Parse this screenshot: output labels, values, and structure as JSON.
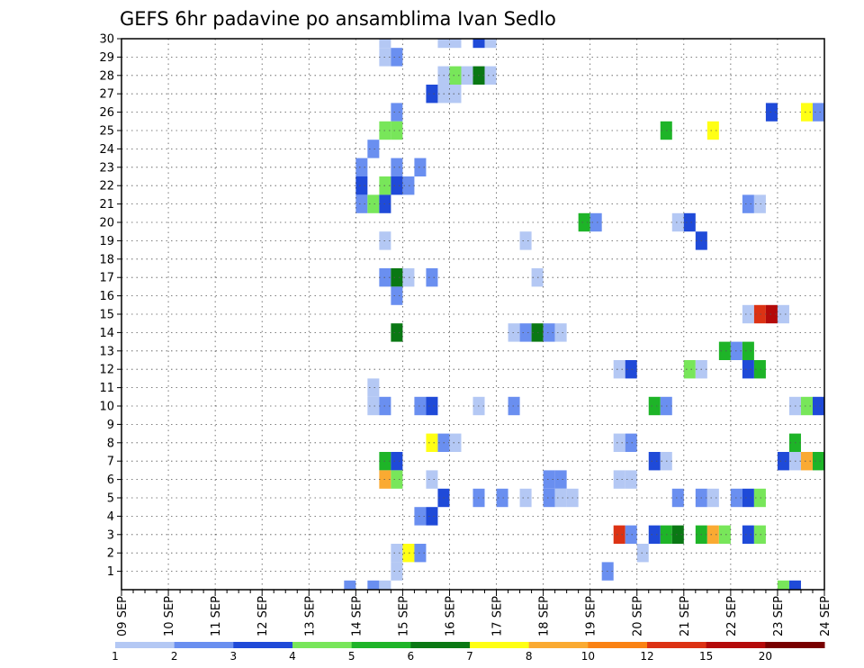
{
  "chart_data": {
    "type": "heatmap",
    "title": "GEFS 6hr padavine po ansamblima Ivan Sedlo",
    "xlabel": "",
    "ylabel": "",
    "xlim": [
      0,
      60
    ],
    "ylim": [
      0,
      30
    ],
    "y_ticks": [
      1,
      2,
      3,
      4,
      5,
      6,
      7,
      8,
      9,
      10,
      11,
      12,
      13,
      14,
      15,
      16,
      17,
      18,
      19,
      20,
      21,
      22,
      23,
      24,
      25,
      26,
      27,
      28,
      29,
      30
    ],
    "x_tick_labels": [
      "09 SEP",
      "10 SEP",
      "11 SEP",
      "12 SEP",
      "13 SEP",
      "14 SEP",
      "15 SEP",
      "16 SEP",
      "17 SEP",
      "18 SEP",
      "19 SEP",
      "20 SEP",
      "21 SEP",
      "22 SEP",
      "23 SEP",
      "24 SEP"
    ],
    "grid": true,
    "legend": {
      "placement": "bottom",
      "boundary_labels": [
        "1",
        "2",
        "3",
        "4",
        "5",
        "6",
        "7",
        "8",
        "10",
        "12",
        "15",
        "20"
      ],
      "colors": [
        "#b4c8f4",
        "#6a8ff0",
        "#1f4ad8",
        "#78e65a",
        "#1eb428",
        "#0a7814",
        "#ffff14",
        "#faaa32",
        "#fa8214",
        "#dc3214",
        "#b40a0a",
        "#780000"
      ]
    },
    "cells": [
      {
        "m": 30,
        "t": 22,
        "v": 1
      },
      {
        "m": 30,
        "t": 27,
        "v": 1
      },
      {
        "m": 30,
        "t": 28,
        "v": 1
      },
      {
        "m": 30,
        "t": 30,
        "v": 3
      },
      {
        "m": 30,
        "t": 31,
        "v": 1
      },
      {
        "m": 29,
        "t": 22,
        "v": 1
      },
      {
        "m": 29,
        "t": 23,
        "v": 2
      },
      {
        "m": 28,
        "t": 27,
        "v": 1
      },
      {
        "m": 28,
        "t": 28,
        "v": 4
      },
      {
        "m": 28,
        "t": 29,
        "v": 1
      },
      {
        "m": 28,
        "t": 30,
        "v": 6
      },
      {
        "m": 28,
        "t": 31,
        "v": 1
      },
      {
        "m": 27,
        "t": 26,
        "v": 3
      },
      {
        "m": 27,
        "t": 27,
        "v": 1
      },
      {
        "m": 27,
        "t": 28,
        "v": 1
      },
      {
        "m": 26,
        "t": 23,
        "v": 2
      },
      {
        "m": 26,
        "t": 55,
        "v": 3
      },
      {
        "m": 26,
        "t": 58,
        "v": 7
      },
      {
        "m": 26,
        "t": 59,
        "v": 2
      },
      {
        "m": 25,
        "t": 22,
        "v": 4
      },
      {
        "m": 25,
        "t": 23,
        "v": 4
      },
      {
        "m": 25,
        "t": 46,
        "v": 5
      },
      {
        "m": 25,
        "t": 50,
        "v": 7
      },
      {
        "m": 24,
        "t": 21,
        "v": 2
      },
      {
        "m": 23,
        "t": 20,
        "v": 2
      },
      {
        "m": 23,
        "t": 23,
        "v": 2
      },
      {
        "m": 23,
        "t": 25,
        "v": 2
      },
      {
        "m": 22,
        "t": 20,
        "v": 3
      },
      {
        "m": 22,
        "t": 22,
        "v": 4
      },
      {
        "m": 22,
        "t": 23,
        "v": 3
      },
      {
        "m": 22,
        "t": 24,
        "v": 2
      },
      {
        "m": 21,
        "t": 20,
        "v": 2
      },
      {
        "m": 21,
        "t": 21,
        "v": 4
      },
      {
        "m": 21,
        "t": 22,
        "v": 3
      },
      {
        "m": 21,
        "t": 53,
        "v": 2
      },
      {
        "m": 21,
        "t": 54,
        "v": 1
      },
      {
        "m": 20,
        "t": 39,
        "v": 5
      },
      {
        "m": 20,
        "t": 40,
        "v": 2
      },
      {
        "m": 20,
        "t": 47,
        "v": 1
      },
      {
        "m": 20,
        "t": 48,
        "v": 3
      },
      {
        "m": 19,
        "t": 22,
        "v": 1
      },
      {
        "m": 19,
        "t": 34,
        "v": 1
      },
      {
        "m": 19,
        "t": 49,
        "v": 3
      },
      {
        "m": 17,
        "t": 22,
        "v": 2
      },
      {
        "m": 17,
        "t": 23,
        "v": 6
      },
      {
        "m": 17,
        "t": 24,
        "v": 1
      },
      {
        "m": 17,
        "t": 26,
        "v": 2
      },
      {
        "m": 17,
        "t": 35,
        "v": 1
      },
      {
        "m": 16,
        "t": 23,
        "v": 2
      },
      {
        "m": 15,
        "t": 53,
        "v": 1
      },
      {
        "m": 15,
        "t": 54,
        "v": 10
      },
      {
        "m": 15,
        "t": 55,
        "v": 11
      },
      {
        "m": 15,
        "t": 56,
        "v": 1
      },
      {
        "m": 14,
        "t": 23,
        "v": 6
      },
      {
        "m": 14,
        "t": 33,
        "v": 1
      },
      {
        "m": 14,
        "t": 34,
        "v": 2
      },
      {
        "m": 14,
        "t": 35,
        "v": 6
      },
      {
        "m": 14,
        "t": 36,
        "v": 2
      },
      {
        "m": 14,
        "t": 37,
        "v": 1
      },
      {
        "m": 13,
        "t": 51,
        "v": 5
      },
      {
        "m": 13,
        "t": 52,
        "v": 2
      },
      {
        "m": 13,
        "t": 53,
        "v": 5
      },
      {
        "m": 12,
        "t": 42,
        "v": 1
      },
      {
        "m": 12,
        "t": 43,
        "v": 3
      },
      {
        "m": 12,
        "t": 48,
        "v": 4
      },
      {
        "m": 12,
        "t": 49,
        "v": 1
      },
      {
        "m": 12,
        "t": 53,
        "v": 3
      },
      {
        "m": 12,
        "t": 54,
        "v": 5
      },
      {
        "m": 11,
        "t": 21,
        "v": 1
      },
      {
        "m": 10,
        "t": 21,
        "v": 1
      },
      {
        "m": 10,
        "t": 22,
        "v": 2
      },
      {
        "m": 10,
        "t": 25,
        "v": 2
      },
      {
        "m": 10,
        "t": 26,
        "v": 3
      },
      {
        "m": 10,
        "t": 30,
        "v": 1
      },
      {
        "m": 10,
        "t": 33,
        "v": 2
      },
      {
        "m": 10,
        "t": 45,
        "v": 5
      },
      {
        "m": 10,
        "t": 46,
        "v": 2
      },
      {
        "m": 10,
        "t": 57,
        "v": 1
      },
      {
        "m": 10,
        "t": 58,
        "v": 4
      },
      {
        "m": 10,
        "t": 59,
        "v": 3
      },
      {
        "m": 8,
        "t": 26,
        "v": 7
      },
      {
        "m": 8,
        "t": 27,
        "v": 2
      },
      {
        "m": 8,
        "t": 28,
        "v": 1
      },
      {
        "m": 8,
        "t": 42,
        "v": 1
      },
      {
        "m": 8,
        "t": 43,
        "v": 2
      },
      {
        "m": 8,
        "t": 57,
        "v": 5
      },
      {
        "m": 7,
        "t": 22,
        "v": 5
      },
      {
        "m": 7,
        "t": 23,
        "v": 3
      },
      {
        "m": 7,
        "t": 45,
        "v": 3
      },
      {
        "m": 7,
        "t": 46,
        "v": 1
      },
      {
        "m": 7,
        "t": 56,
        "v": 3
      },
      {
        "m": 7,
        "t": 57,
        "v": 1
      },
      {
        "m": 7,
        "t": 58,
        "v": 8
      },
      {
        "m": 7,
        "t": 59,
        "v": 5
      },
      {
        "m": 6,
        "t": 22,
        "v": 8
      },
      {
        "m": 6,
        "t": 23,
        "v": 4
      },
      {
        "m": 6,
        "t": 26,
        "v": 1
      },
      {
        "m": 6,
        "t": 36,
        "v": 2
      },
      {
        "m": 6,
        "t": 37,
        "v": 2
      },
      {
        "m": 6,
        "t": 42,
        "v": 1
      },
      {
        "m": 6,
        "t": 43,
        "v": 1
      },
      {
        "m": 5,
        "t": 27,
        "v": 3
      },
      {
        "m": 5,
        "t": 30,
        "v": 2
      },
      {
        "m": 5,
        "t": 32,
        "v": 2
      },
      {
        "m": 5,
        "t": 34,
        "v": 1
      },
      {
        "m": 5,
        "t": 36,
        "v": 2
      },
      {
        "m": 5,
        "t": 37,
        "v": 1
      },
      {
        "m": 5,
        "t": 38,
        "v": 1
      },
      {
        "m": 5,
        "t": 47,
        "v": 2
      },
      {
        "m": 5,
        "t": 49,
        "v": 2
      },
      {
        "m": 5,
        "t": 50,
        "v": 1
      },
      {
        "m": 5,
        "t": 52,
        "v": 2
      },
      {
        "m": 5,
        "t": 53,
        "v": 3
      },
      {
        "m": 5,
        "t": 54,
        "v": 4
      },
      {
        "m": 4,
        "t": 25,
        "v": 2
      },
      {
        "m": 4,
        "t": 26,
        "v": 3
      },
      {
        "m": 3,
        "t": 42,
        "v": 10
      },
      {
        "m": 3,
        "t": 43,
        "v": 2
      },
      {
        "m": 3,
        "t": 45,
        "v": 3
      },
      {
        "m": 3,
        "t": 46,
        "v": 5
      },
      {
        "m": 3,
        "t": 47,
        "v": 6
      },
      {
        "m": 3,
        "t": 49,
        "v": 5
      },
      {
        "m": 3,
        "t": 50,
        "v": 8
      },
      {
        "m": 3,
        "t": 51,
        "v": 4
      },
      {
        "m": 3,
        "t": 53,
        "v": 3
      },
      {
        "m": 3,
        "t": 54,
        "v": 4
      },
      {
        "m": 2,
        "t": 23,
        "v": 1
      },
      {
        "m": 2,
        "t": 24,
        "v": 7
      },
      {
        "m": 2,
        "t": 25,
        "v": 2
      },
      {
        "m": 2,
        "t": 44,
        "v": 1
      },
      {
        "m": 1,
        "t": 23,
        "v": 1
      },
      {
        "m": 1,
        "t": 41,
        "v": 2
      },
      {
        "m": 0,
        "t": 19,
        "v": 2
      },
      {
        "m": 0,
        "t": 21,
        "v": 2
      },
      {
        "m": 0,
        "t": 22,
        "v": 1
      },
      {
        "m": 0,
        "t": 56,
        "v": 4
      },
      {
        "m": 0,
        "t": 57,
        "v": 3
      }
    ]
  }
}
